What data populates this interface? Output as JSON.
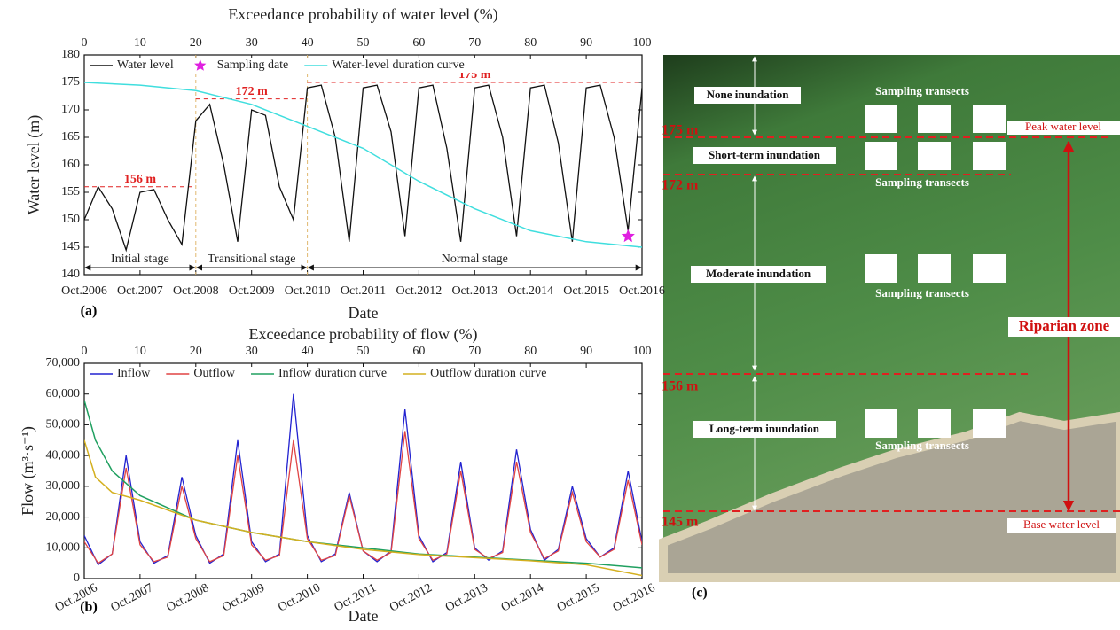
{
  "chart_data": [
    {
      "type": "line",
      "x2_label": "Exceedance probability of water level (%)",
      "y_label": "Water level (m)",
      "x_label": "Date",
      "panel_label": "(a)",
      "categories": [
        "Oct.2006",
        "Oct.2007",
        "Oct.2008",
        "Oct.2009",
        "Oct.2010",
        "Oct.2011",
        "Oct.2012",
        "Oct.2013",
        "Oct.2014",
        "Oct.2015",
        "Oct.2016"
      ],
      "xlim": [
        0,
        100
      ],
      "xticks": [
        0,
        10,
        20,
        30,
        40,
        50,
        60,
        70,
        80,
        90,
        100
      ],
      "ylim": [
        140,
        180
      ],
      "yticks": [
        140,
        145,
        150,
        155,
        160,
        165,
        170,
        175,
        180
      ],
      "series": [
        {
          "name": "Water level",
          "color": "#111111",
          "x": [
            "Oct.2006",
            "Jan.2007",
            "Apr.2007",
            "Jul.2007",
            "Oct.2007",
            "Jan.2008",
            "Apr.2008",
            "Jul.2008",
            "Oct.2008",
            "Jan.2009",
            "Apr.2009",
            "Jul.2009",
            "Oct.2009",
            "Jan.2010",
            "Apr.2010",
            "Jul.2010",
            "Oct.2010",
            "Jan.2011",
            "Apr.2011",
            "Jul.2011",
            "Oct.2011",
            "Jan.2012",
            "Apr.2012",
            "Jul.2012",
            "Oct.2012",
            "Jan.2013",
            "Apr.2013",
            "Jul.2013",
            "Oct.2013",
            "Jan.2014",
            "Apr.2014",
            "Jul.2014",
            "Oct.2014",
            "Jan.2015",
            "Apr.2015",
            "Jul.2015",
            "Oct.2015",
            "Jan.2016",
            "Apr.2016",
            "Jul.2016",
            "Oct.2016"
          ],
          "values": [
            150,
            156,
            152,
            144.5,
            155,
            155.5,
            150,
            145.5,
            168,
            171,
            160,
            146,
            170,
            169,
            156,
            150,
            174,
            174.5,
            165,
            146,
            174,
            174.5,
            166,
            147,
            174,
            174.5,
            163,
            146,
            174,
            174.5,
            165,
            147,
            174,
            174.5,
            164,
            146,
            174,
            174.5,
            165,
            148,
            174
          ]
        },
        {
          "name": "Sampling date",
          "color": "#e020e0",
          "marker": "star",
          "x": [
            "Jul.2016"
          ],
          "values": [
            147
          ]
        },
        {
          "name": "Water-level duration curve",
          "color": "#40dede",
          "axis": "x2",
          "x": [
            0,
            10,
            20,
            30,
            40,
            50,
            60,
            70,
            80,
            90,
            100
          ],
          "values": [
            175,
            174.5,
            173.5,
            171,
            167,
            163,
            157,
            152,
            148,
            146,
            145
          ]
        }
      ],
      "reference_lines": [
        {
          "label": "156 m",
          "value": 156,
          "from": "Oct.2006",
          "to": "Oct.2008"
        },
        {
          "label": "172 m",
          "value": 172,
          "from": "Oct.2008",
          "to": "Oct.2010"
        },
        {
          "label": "175 m",
          "value": 175,
          "from": "Oct.2010",
          "to": "Oct.2016"
        }
      ],
      "stages": [
        {
          "label": "Initial stage",
          "from": "Oct.2006",
          "to": "Oct.2008"
        },
        {
          "label": "Transitional stage",
          "from": "Oct.2008",
          "to": "Oct.2010"
        },
        {
          "label": "Normal stage",
          "from": "Oct.2010",
          "to": "Oct.2016"
        }
      ]
    },
    {
      "type": "line",
      "x2_label": "Exceedance probability of flow (%)",
      "y_label": "Flow (m³·s⁻¹)",
      "x_label": "Date",
      "panel_label": "(b)",
      "categories": [
        "Oct.2006",
        "Oct.2007",
        "Oct.2008",
        "Oct.2009",
        "Oct.2010",
        "Oct.2011",
        "Oct.2012",
        "Oct.2013",
        "Oct.2014",
        "Oct.2015",
        "Oct.2016"
      ],
      "xlim": [
        0,
        100
      ],
      "xticks": [
        0,
        10,
        20,
        30,
        40,
        50,
        60,
        70,
        80,
        90,
        100
      ],
      "ylim": [
        0,
        70000
      ],
      "yticks": [
        0,
        {
          "value": 10000,
          "label": "10,000"
        },
        {
          "value": 20000,
          "label": "20,000"
        },
        {
          "value": 30000,
          "label": "30,000"
        },
        {
          "value": 40000,
          "label": "40,000"
        },
        {
          "value": 50000,
          "label": "50,000"
        },
        {
          "value": 60000,
          "label": "60,000"
        },
        {
          "value": 70000,
          "label": "70,000"
        }
      ],
      "series": [
        {
          "name": "Inflow",
          "color": "#2222d0",
          "x": [
            "Oct.2006",
            "Jan.2007",
            "Apr.2007",
            "Jul.2007",
            "Oct.2007",
            "Jan.2008",
            "Apr.2008",
            "Jul.2008",
            "Oct.2008",
            "Jan.2009",
            "Apr.2009",
            "Jul.2009",
            "Oct.2009",
            "Jan.2010",
            "Apr.2010",
            "Jul.2010",
            "Oct.2010",
            "Jan.2011",
            "Apr.2011",
            "Jul.2011",
            "Oct.2011",
            "Jan.2012",
            "Apr.2012",
            "Jul.2012",
            "Oct.2012",
            "Jan.2013",
            "Apr.2013",
            "Jul.2013",
            "Oct.2013",
            "Jan.2014",
            "Apr.2014",
            "Jul.2014",
            "Oct.2014",
            "Jan.2015",
            "Apr.2015",
            "Jul.2015",
            "Oct.2015",
            "Jan.2016",
            "Apr.2016",
            "Jul.2016",
            "Oct.2016"
          ],
          "values": [
            14000,
            4500,
            8000,
            40000,
            12000,
            5000,
            7500,
            33000,
            14000,
            5000,
            8000,
            45000,
            12000,
            5500,
            8000,
            60000,
            14000,
            5500,
            8000,
            28000,
            9000,
            5500,
            9000,
            55000,
            14000,
            5500,
            8500,
            38000,
            10000,
            6000,
            9000,
            42000,
            16000,
            6000,
            9500,
            30000,
            13000,
            7000,
            10000,
            35000,
            12000
          ]
        },
        {
          "name": "Outflow",
          "color": "#e04444",
          "x": [
            "Oct.2006",
            "Jan.2007",
            "Apr.2007",
            "Jul.2007",
            "Oct.2007",
            "Jan.2008",
            "Apr.2008",
            "Jul.2008",
            "Oct.2008",
            "Jan.2009",
            "Apr.2009",
            "Jul.2009",
            "Oct.2009",
            "Jan.2010",
            "Apr.2010",
            "Jul.2010",
            "Oct.2010",
            "Jan.2011",
            "Apr.2011",
            "Jul.2011",
            "Oct.2011",
            "Jan.2012",
            "Apr.2012",
            "Jul.2012",
            "Oct.2012",
            "Jan.2013",
            "Apr.2013",
            "Jul.2013",
            "Oct.2013",
            "Jan.2014",
            "Apr.2014",
            "Jul.2014",
            "Oct.2014",
            "Jan.2015",
            "Apr.2015",
            "Jul.2015",
            "Oct.2015",
            "Jan.2016",
            "Apr.2016",
            "Jul.2016",
            "Oct.2016"
          ],
          "values": [
            12000,
            5000,
            8000,
            36000,
            11000,
            5500,
            7000,
            30000,
            13000,
            5500,
            7500,
            40000,
            11000,
            6000,
            7500,
            45000,
            13000,
            6000,
            7500,
            27000,
            9000,
            6000,
            8500,
            48000,
            13000,
            6000,
            8000,
            35000,
            9500,
            6500,
            8500,
            38000,
            15000,
            6500,
            9000,
            28000,
            12000,
            7000,
            9500,
            32000,
            11000
          ]
        },
        {
          "name": "Inflow duration curve",
          "color": "#20a060",
          "axis": "x2",
          "x": [
            0,
            2,
            5,
            10,
            20,
            30,
            40,
            50,
            60,
            70,
            80,
            90,
            100
          ],
          "values": [
            58000,
            45000,
            35000,
            27000,
            19000,
            15000,
            12000,
            10000,
            8000,
            7000,
            6000,
            5000,
            3500
          ]
        },
        {
          "name": "Outflow duration curve",
          "color": "#d4b020",
          "axis": "x2",
          "x": [
            0,
            2,
            5,
            10,
            20,
            30,
            40,
            50,
            60,
            70,
            80,
            90,
            100
          ],
          "values": [
            45000,
            33000,
            28000,
            25500,
            19000,
            15000,
            12000,
            9500,
            7800,
            6800,
            5800,
            4500,
            1000
          ]
        }
      ]
    }
  ],
  "image_panel": {
    "panel_label": "(c)",
    "zones": [
      {
        "label": "None inundation"
      },
      {
        "label": "Short-term inundation"
      },
      {
        "label": "Moderate inundation"
      },
      {
        "label": "Long-term inundation"
      }
    ],
    "levels": [
      {
        "label": "175 m"
      },
      {
        "label": "172 m"
      },
      {
        "label": "156 m"
      },
      {
        "label": "145 m"
      }
    ],
    "transects": [
      {
        "label": "Sampling transects"
      },
      {
        "label": "Sampling transects"
      },
      {
        "label": "Sampling transects"
      },
      {
        "label": "Sampling transects"
      }
    ],
    "peak_label": "Peak water level",
    "base_label": "Base water level",
    "zone_label": "Riparian zone"
  }
}
